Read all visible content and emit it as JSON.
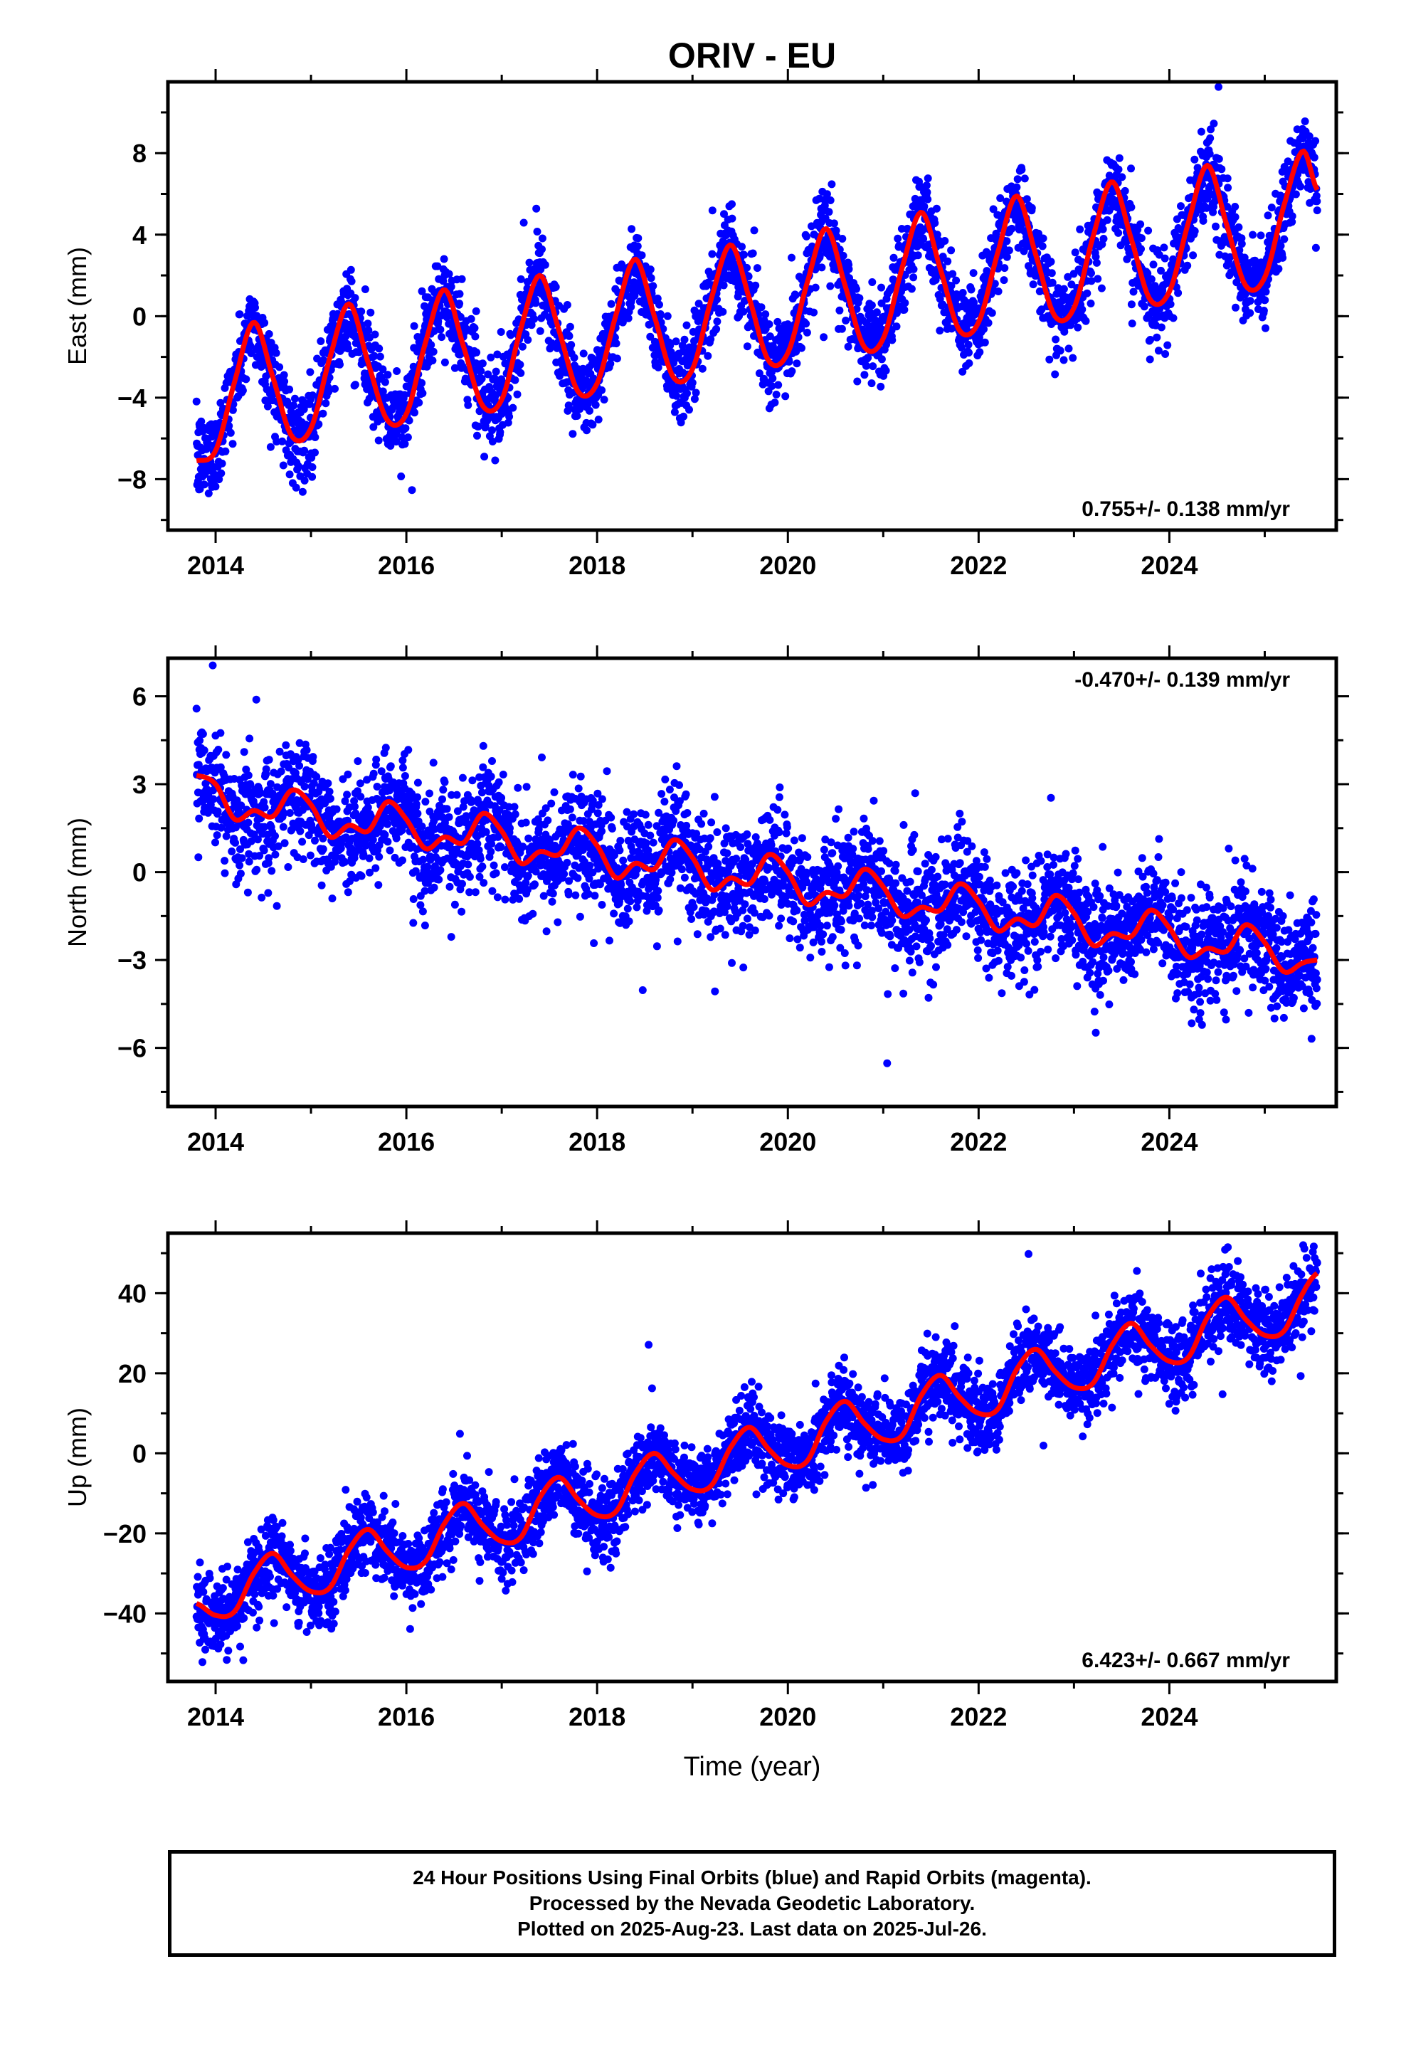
{
  "title": "ORIV - EU",
  "colors": {
    "points": "#0000ff",
    "fit": "#ff0000",
    "frame": "#000000"
  },
  "chart_data": [
    {
      "type": "scatter",
      "name": "east",
      "ylabel": "East (mm)",
      "xlabel": "",
      "xlim": [
        2013.5,
        2025.75
      ],
      "ylim": [
        -10.5,
        11.5
      ],
      "xticks": [
        2014,
        2016,
        2018,
        2020,
        2022,
        2024
      ],
      "yticks": [
        -8,
        -4,
        0,
        4,
        8
      ],
      "rate_label": "0.755+/- 0.138 mm/yr",
      "rate_position": "bottom-right",
      "grid": false,
      "series": [
        {
          "role": "fit",
          "x": [
            2013.8,
            2014.0,
            2014.2,
            2014.4,
            2014.6,
            2014.8,
            2015.0,
            2015.2,
            2015.4,
            2015.6,
            2015.8,
            2016.0,
            2016.2,
            2016.4,
            2016.6,
            2016.8,
            2017.0,
            2017.2,
            2017.4,
            2017.6,
            2017.8,
            2018.0,
            2018.2,
            2018.4,
            2018.6,
            2018.8,
            2019.0,
            2019.2,
            2019.4,
            2019.6,
            2019.8,
            2020.0,
            2020.2,
            2020.4,
            2020.6,
            2020.8,
            2021.0,
            2021.2,
            2021.4,
            2021.6,
            2021.8,
            2022.0,
            2022.2,
            2022.4,
            2022.6,
            2022.8,
            2023.0,
            2023.2,
            2023.4,
            2023.6,
            2023.8,
            2024.0,
            2024.2,
            2024.4,
            2024.6,
            2024.8,
            2025.0,
            2025.2,
            2025.4,
            2025.55
          ],
          "y": [
            -7.1,
            -6.6,
            -3.2,
            -0.3,
            -3.0,
            -5.9,
            -5.5,
            -2.0,
            0.6,
            -2.3,
            -5.1,
            -4.8,
            -1.3,
            1.3,
            -1.5,
            -4.4,
            -4.1,
            -0.6,
            2.0,
            -0.7,
            -3.7,
            -3.3,
            0.1,
            2.8,
            0.0,
            -3.0,
            -2.6,
            0.9,
            3.5,
            0.8,
            -2.2,
            -1.8,
            1.6,
            4.3,
            1.5,
            -1.5,
            -1.1,
            2.4,
            5.1,
            2.3,
            -0.7,
            -0.3,
            3.1,
            5.9,
            3.0,
            0.0,
            0.4,
            3.9,
            6.6,
            3.8,
            0.8,
            1.2,
            4.6,
            7.4,
            4.5,
            1.5,
            1.9,
            5.4,
            8.1,
            6.2
          ]
        }
      ]
    },
    {
      "type": "scatter",
      "name": "north",
      "ylabel": "North (mm)",
      "xlabel": "",
      "xlim": [
        2013.5,
        2025.75
      ],
      "ylim": [
        -8,
        7.3
      ],
      "xticks": [
        2014,
        2016,
        2018,
        2020,
        2022,
        2024
      ],
      "yticks": [
        -6,
        -3,
        0,
        3,
        6
      ],
      "rate_label": "-0.470+/- 0.139 mm/yr",
      "rate_position": "top-right",
      "grid": false,
      "series": [
        {
          "role": "fit",
          "x": [
            2013.8,
            2014.0,
            2014.2,
            2014.4,
            2014.6,
            2014.8,
            2015.0,
            2015.2,
            2015.4,
            2015.6,
            2015.8,
            2016.0,
            2016.2,
            2016.4,
            2016.6,
            2016.8,
            2017.0,
            2017.2,
            2017.4,
            2017.6,
            2017.8,
            2018.0,
            2018.2,
            2018.4,
            2018.6,
            2018.8,
            2019.0,
            2019.2,
            2019.4,
            2019.6,
            2019.8,
            2020.0,
            2020.2,
            2020.4,
            2020.6,
            2020.8,
            2021.0,
            2021.2,
            2021.4,
            2021.6,
            2021.8,
            2022.0,
            2022.2,
            2022.4,
            2022.6,
            2022.8,
            2023.0,
            2023.2,
            2023.4,
            2023.6,
            2023.8,
            2024.0,
            2024.2,
            2024.4,
            2024.6,
            2024.8,
            2025.0,
            2025.2,
            2025.4,
            2025.55
          ],
          "y": [
            3.3,
            3.0,
            1.8,
            2.1,
            1.9,
            2.8,
            2.3,
            1.2,
            1.6,
            1.4,
            2.4,
            1.8,
            0.8,
            1.2,
            1.0,
            2.0,
            1.4,
            0.3,
            0.7,
            0.6,
            1.5,
            0.9,
            -0.2,
            0.3,
            0.1,
            1.1,
            0.5,
            -0.6,
            -0.2,
            -0.4,
            0.6,
            0.0,
            -1.1,
            -0.7,
            -0.8,
            0.1,
            -0.5,
            -1.5,
            -1.2,
            -1.3,
            -0.4,
            -1.0,
            -2.0,
            -1.6,
            -1.8,
            -0.8,
            -1.4,
            -2.5,
            -2.1,
            -2.2,
            -1.3,
            -1.9,
            -2.9,
            -2.6,
            -2.7,
            -1.8,
            -2.4,
            -3.4,
            -3.1,
            -3.0
          ]
        }
      ]
    },
    {
      "type": "scatter",
      "name": "up",
      "ylabel": "Up (mm)",
      "xlabel": "Time (year)",
      "xlim": [
        2013.5,
        2025.75
      ],
      "ylim": [
        -57,
        55
      ],
      "xticks": [
        2014,
        2016,
        2018,
        2020,
        2022,
        2024
      ],
      "yticks": [
        -40,
        -20,
        0,
        20,
        40
      ],
      "rate_label": "6.423+/- 0.667 mm/yr",
      "rate_position": "bottom-right",
      "grid": false,
      "series": [
        {
          "role": "fit",
          "x": [
            2013.8,
            2014.0,
            2014.2,
            2014.4,
            2014.6,
            2014.8,
            2015.0,
            2015.2,
            2015.4,
            2015.6,
            2015.8,
            2016.0,
            2016.2,
            2016.4,
            2016.6,
            2016.8,
            2017.0,
            2017.2,
            2017.4,
            2017.6,
            2017.8,
            2018.0,
            2018.2,
            2018.4,
            2018.6,
            2018.8,
            2019.0,
            2019.2,
            2019.4,
            2019.6,
            2019.8,
            2020.0,
            2020.2,
            2020.4,
            2020.6,
            2020.8,
            2021.0,
            2021.2,
            2021.4,
            2021.6,
            2021.8,
            2022.0,
            2022.2,
            2022.4,
            2022.6,
            2022.8,
            2023.0,
            2023.2,
            2023.4,
            2023.6,
            2023.8,
            2024.0,
            2024.2,
            2024.4,
            2024.6,
            2024.8,
            2025.0,
            2025.2,
            2025.4,
            2025.55
          ],
          "y": [
            -37.5,
            -40.5,
            -39.5,
            -30.0,
            -25.0,
            -30.5,
            -34.5,
            -33.5,
            -24.0,
            -19.0,
            -24.5,
            -28.5,
            -27.0,
            -17.5,
            -12.5,
            -18.0,
            -22.0,
            -21.0,
            -11.0,
            -6.0,
            -11.5,
            -15.5,
            -14.5,
            -5.0,
            0.0,
            -5.0,
            -9.0,
            -8.0,
            1.5,
            6.5,
            1.0,
            -3.0,
            -2.0,
            8.0,
            13.0,
            7.5,
            3.5,
            4.5,
            14.5,
            19.5,
            14.0,
            10.0,
            11.0,
            21.0,
            26.0,
            20.5,
            16.5,
            17.5,
            27.0,
            32.5,
            27.0,
            23.0,
            24.0,
            34.0,
            39.0,
            33.5,
            29.5,
            30.5,
            40.0,
            45.0
          ]
        }
      ]
    }
  ],
  "footer": {
    "line1": "24 Hour Positions Using Final Orbits (blue) and Rapid Orbits (magenta).",
    "line2": "Processed by the Nevada Geodetic Laboratory.",
    "line3": "Plotted on 2025-Aug-23. Last data on 2025-Jul-26."
  }
}
